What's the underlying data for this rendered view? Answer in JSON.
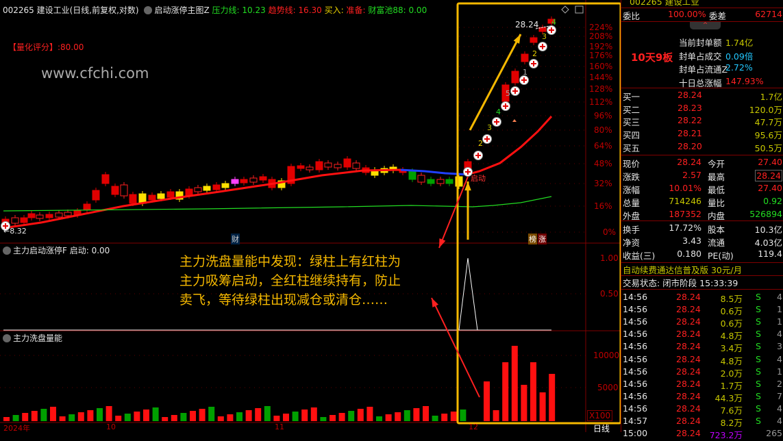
{
  "header": {
    "code_name": "002265 建设工业(日线,前复权,对数)",
    "indicator": "启动涨停主图Z",
    "pressure": "压力线: 10.23",
    "trend": "趋势线: 16.30",
    "buy": "买入:",
    "prepare": "准备:",
    "pool": "财富池88: 0.00"
  },
  "chart": {
    "score": "【量化评分】:80.00",
    "watermark": "www.cfchi.com",
    "low_label": "←8.32",
    "high_label": "28.24",
    "cai_badge": "财",
    "bang_badge": "榜",
    "zhang_badge": "涨",
    "start_label": "启动",
    "pct_axis": [
      "224%",
      "208%",
      "192%",
      "176%",
      "160%",
      "144%",
      "128%",
      "112%",
      "96%",
      "80%",
      "64%",
      "48%",
      "32%",
      "16%",
      "0%"
    ],
    "limit_counts": [
      "2",
      "3",
      "4",
      "5",
      "1",
      "2",
      "3",
      "4"
    ],
    "colors": {
      "up": "#ff2020",
      "down": "#00a000",
      "ma": "#ff1010",
      "ma_long": "#22dd22",
      "highlight": "#f5b800"
    }
  },
  "sub1": {
    "title": "主力启动涨停F 启动: 0.00",
    "axis": [
      "1.00",
      "0.50"
    ]
  },
  "sub2": {
    "title": "主力洗盘量能",
    "axis": [
      "10000",
      "5000"
    ],
    "unit": "X100",
    "volume_recent": [
      5960,
      1490,
      8940,
      11490,
      5430,
      8940,
      4260,
      7130
    ]
  },
  "annotation": "主力洗盘量能中发现：绿柱上有红柱为\n主力吸筹启动，全红柱继续持有，防止\n卖飞，等待绿柱出现减仓或清仓……",
  "x_axis": [
    "2024年",
    "10",
    "11",
    "12",
    "日线"
  ],
  "panel": {
    "title": "002265 建设工业",
    "weibi": {
      "label": "委比",
      "value": "100.00%",
      "label2": "委差",
      "value2": "62714"
    },
    "board": "10天9板",
    "seal": [
      {
        "label": "当前封单额",
        "value": "1.74亿"
      },
      {
        "label": "封单占成交",
        "value": "0.09倍"
      },
      {
        "label": "封单占流通Z",
        "value": "2.72%"
      },
      {
        "label": "十日总涨幅",
        "value": "147.93%"
      }
    ],
    "bids": [
      {
        "label": "买一",
        "price": "28.24",
        "vol": "1.7亿"
      },
      {
        "label": "买二",
        "price": "28.23",
        "vol": "120.0万"
      },
      {
        "label": "买三",
        "price": "28.22",
        "vol": "47.7万"
      },
      {
        "label": "买四",
        "price": "28.21",
        "vol": "95.6万"
      },
      {
        "label": "买五",
        "price": "28.20",
        "vol": "50.5万"
      }
    ],
    "quote": [
      {
        "l1": "现价",
        "v1": "28.24",
        "l2": "今开",
        "v2": "27.40"
      },
      {
        "l1": "涨跌",
        "v1": "2.57",
        "l2": "最高",
        "v2": "28.24"
      },
      {
        "l1": "涨幅",
        "v1": "10.01%",
        "l2": "最低",
        "v2": "27.40"
      },
      {
        "l1": "总量",
        "v1": "714246",
        "l2": "量比",
        "v2": "0.92"
      },
      {
        "l1": "外盘",
        "v1": "187352",
        "l2": "内盘",
        "v2": "526894"
      }
    ],
    "fund": [
      {
        "l1": "换手",
        "v1": "17.72%",
        "l2": "股本",
        "v2": "10.3亿"
      },
      {
        "l1": "净资",
        "v1": "3.43",
        "l2": "流通",
        "v2": "4.03亿"
      },
      {
        "l1": "收益(三)",
        "v1": "0.180",
        "l2": "PE(动)",
        "v2": "119.4"
      }
    ],
    "promo": "自动续费通达信普及版  30元/月",
    "status": "交易状态: 闭市阶段 15:33:39",
    "trades": [
      [
        "14:56",
        "28.24",
        "8.5万",
        "S",
        "4"
      ],
      [
        "14:56",
        "28.24",
        "0.6万",
        "S",
        "1"
      ],
      [
        "14:56",
        "28.24",
        "0.6万",
        "S",
        "1"
      ],
      [
        "14:56",
        "28.24",
        "4.8万",
        "S",
        "4"
      ],
      [
        "14:56",
        "28.24",
        "3.4万",
        "S",
        "3"
      ],
      [
        "14:56",
        "28.24",
        "4.8万",
        "S",
        "4"
      ],
      [
        "14:56",
        "28.24",
        "2.0万",
        "S",
        "1"
      ],
      [
        "14:56",
        "28.24",
        "1.7万",
        "S",
        "2"
      ],
      [
        "14:56",
        "28.24",
        "44.3万",
        "S",
        "7"
      ],
      [
        "14:56",
        "28.24",
        "7.6万",
        "S",
        "4"
      ],
      [
        "14:57",
        "28.24",
        "8.2万",
        "S",
        "4"
      ],
      [
        "15:00",
        "28.24",
        "723.2万",
        "",
        "265"
      ]
    ]
  }
}
